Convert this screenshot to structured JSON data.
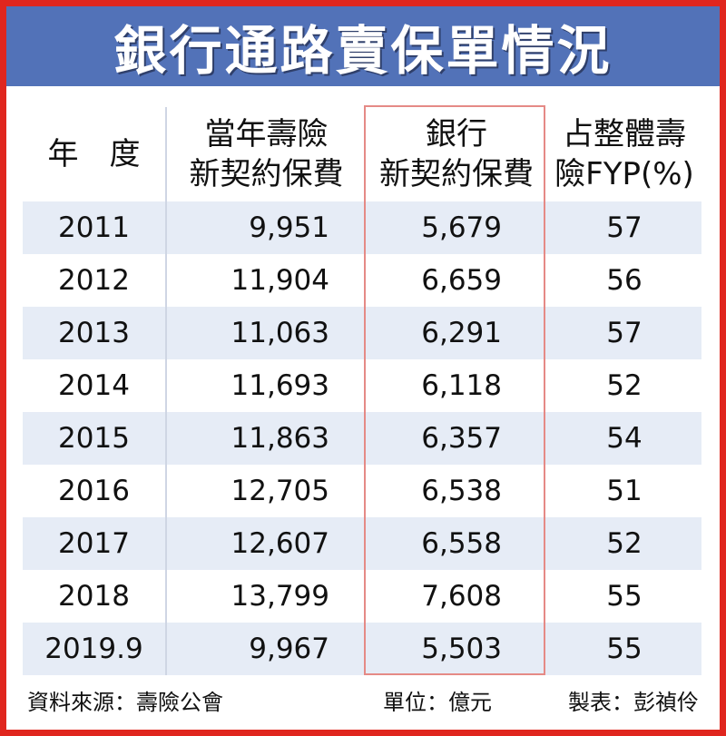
{
  "title": "銀行通路賣保單情況",
  "chart_data": {
    "type": "table",
    "title": "銀行通路賣保單情況",
    "columns": [
      {
        "lines": [
          "年　度"
        ]
      },
      {
        "lines": [
          "當年壽險",
          "新契約保費"
        ]
      },
      {
        "lines": [
          "銀行",
          "新契約保費"
        ]
      },
      {
        "lines": [
          "占整體壽",
          "險FYP(%)"
        ]
      }
    ],
    "rows": [
      {
        "year": "2011",
        "total": "9,951",
        "bank": "5,679",
        "pct": "57"
      },
      {
        "year": "2012",
        "total": "11,904",
        "bank": "6,659",
        "pct": "56"
      },
      {
        "year": "2013",
        "total": "11,063",
        "bank": "6,291",
        "pct": "57"
      },
      {
        "year": "2014",
        "total": "11,693",
        "bank": "6,118",
        "pct": "52"
      },
      {
        "year": "2015",
        "total": "11,863",
        "bank": "6,357",
        "pct": "54"
      },
      {
        "year": "2016",
        "total": "12,705",
        "bank": "6,538",
        "pct": "51"
      },
      {
        "year": "2017",
        "total": "12,607",
        "bank": "6,558",
        "pct": "52"
      },
      {
        "year": "2018",
        "total": "13,799",
        "bank": "7,608",
        "pct": "55"
      },
      {
        "year": "2019.9",
        "total": "9,967",
        "bank": "5,503",
        "pct": "55"
      }
    ]
  },
  "footer": {
    "source": "資料來源：壽險公會",
    "unit": "單位：億元",
    "maker": "製表：彭禎伶"
  },
  "colors": {
    "frame": "#e0261e",
    "title_bg": "#5272b8",
    "stripe": "#e6ecf6",
    "highlight_box": "#e58a86"
  }
}
